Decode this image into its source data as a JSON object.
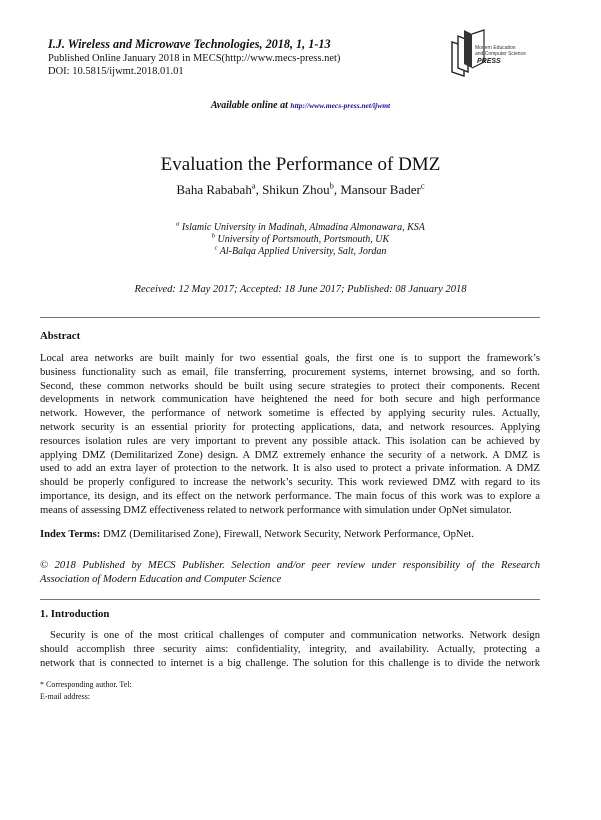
{
  "header": {
    "journal": "I.J. Wireless and Microwave Technologies, 2018, 1, 1-13",
    "published": "Published Online January 2018 in MECS(http://www.mecs-press.net)",
    "doi": "DOI: 10.5815/ijwmt.2018.01.01",
    "logo_text": "Modern Education and Computer Science PRESS",
    "available_label": "Available online at",
    "available_url": "http://www.mecs-press.net/ijwmt"
  },
  "title": "Evaluation the Performance of DMZ",
  "authors": [
    {
      "name": "Baha Rababah",
      "mark": "a"
    },
    {
      "name": "Shikun Zhou",
      "mark": "b"
    },
    {
      "name": "Mansour Bader",
      "mark": "c"
    }
  ],
  "affiliations": [
    {
      "mark": "a",
      "text": "Islamic University in Madinah, Almadina Almonawara, KSA"
    },
    {
      "mark": "b",
      "text": "University of Portsmouth, Portsmouth, UK"
    },
    {
      "mark": "c",
      "text": "Al-Balqa Applied University, Salt, Jordan"
    }
  ],
  "dates": "Received: 12 May 2017; Accepted: 18 June 2017; Published: 08 January 2018",
  "abstract": {
    "heading": "Abstract",
    "lines": [
      "Local area networks are built mainly for two essential goals, the first one is to support the framework’s",
      "business functionality such as email, file transferring, procurement systems, internet browsing, and so forth.",
      "Second, these common networks should be built using secure strategies to protect their components. Recent",
      "developments in network communication have heightened the need for both secure and high performance",
      "network. However, the performance of network sometime is effected by applying security rules. Actually,",
      "network security is an essential priority for protecting applications, data, and network resources. Applying",
      "resources isolation rules are very important to prevent any possible attack. This isolation can be achieved by",
      "applying DMZ (Demilitarized Zone) design. A DMZ extremely enhance the security of a network. A DMZ is",
      "used to add an extra layer of protection to the network. It is also used to protect a private information. A DMZ",
      "should be properly configured to increase the network’s security. This work reviewed DMZ with regard to its",
      "importance, its design, and its effect on the network performance. The main focus of this work was to explore a",
      "means of assessing DMZ effectiveness related to network performance with simulation under OpNet simulator."
    ]
  },
  "index_terms": {
    "label": "Index Terms:",
    "text": "DMZ (Demilitarised Zone), Firewall, Network Security, Network Performance, OpNet."
  },
  "copyright": [
    "© 2018 Published by MECS Publisher. Selection and/or peer review under responsibility of the Research",
    "Association of Modern Education and Computer Science"
  ],
  "introduction": {
    "heading": "1. Introduction",
    "lines": [
      "Security is one of the most critical challenges of computer and communication networks. Network design",
      "should accomplish three security aims: confidentiality, integrity, and availability. Actually, protecting a",
      "network that is connected to internet is a big challenge. The solution for this challenge is to divide the network"
    ]
  },
  "footnote": [
    "* Corresponding author. Tel:",
    "E-mail address:"
  ]
}
